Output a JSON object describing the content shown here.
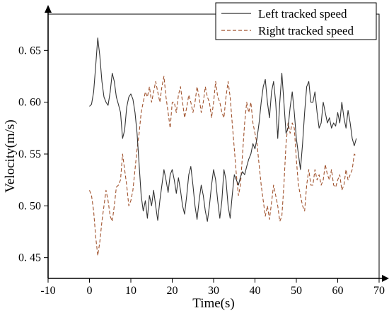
{
  "chart_data": {
    "type": "line",
    "xlabel": "Time(s)",
    "ylabel": "Velocity(m/s)",
    "xlim": [
      -10,
      70
    ],
    "ylim": [
      0.43,
      0.685
    ],
    "xticks": [
      -10,
      0,
      10,
      20,
      30,
      40,
      50,
      60,
      70
    ],
    "xtick_labels": [
      "-10",
      "0",
      "10",
      "20",
      "30",
      "40",
      "50",
      "60",
      "70"
    ],
    "yticks": [
      0.45,
      0.5,
      0.55,
      0.6,
      0.65
    ],
    "ytick_labels": [
      "0. 45",
      "0. 50",
      "0. 55",
      "0. 60",
      "0. 65"
    ],
    "grid": false,
    "legend_position": "top-right",
    "series": [
      {
        "name": "Left tracked speed",
        "color": "#333333",
        "style": "solid",
        "points": [
          [
            0,
            0.596
          ],
          [
            0.5,
            0.598
          ],
          [
            1,
            0.61
          ],
          [
            1.5,
            0.635
          ],
          [
            2,
            0.662
          ],
          [
            2.5,
            0.645
          ],
          [
            3,
            0.62
          ],
          [
            3.5,
            0.605
          ],
          [
            4,
            0.6
          ],
          [
            4.5,
            0.597
          ],
          [
            5,
            0.61
          ],
          [
            5.5,
            0.628
          ],
          [
            6,
            0.62
          ],
          [
            6.5,
            0.605
          ],
          [
            7,
            0.598
          ],
          [
            7.5,
            0.59
          ],
          [
            8,
            0.565
          ],
          [
            8.5,
            0.573
          ],
          [
            9,
            0.595
          ],
          [
            9.5,
            0.605
          ],
          [
            10,
            0.608
          ],
          [
            10.5,
            0.603
          ],
          [
            11,
            0.59
          ],
          [
            11.5,
            0.57
          ],
          [
            12,
            0.54
          ],
          [
            12.5,
            0.51
          ],
          [
            13,
            0.495
          ],
          [
            13.5,
            0.505
          ],
          [
            14,
            0.488
          ],
          [
            14.5,
            0.51
          ],
          [
            15,
            0.5
          ],
          [
            15.5,
            0.515
          ],
          [
            16,
            0.5
          ],
          [
            16.5,
            0.486
          ],
          [
            17,
            0.505
          ],
          [
            17.5,
            0.52
          ],
          [
            18,
            0.535
          ],
          [
            18.5,
            0.525
          ],
          [
            19,
            0.513
          ],
          [
            19.5,
            0.53
          ],
          [
            20,
            0.535
          ],
          [
            20.5,
            0.525
          ],
          [
            21,
            0.512
          ],
          [
            21.5,
            0.527
          ],
          [
            22,
            0.515
          ],
          [
            22.5,
            0.5
          ],
          [
            23,
            0.492
          ],
          [
            23.5,
            0.51
          ],
          [
            24,
            0.53
          ],
          [
            24.5,
            0.538
          ],
          [
            25,
            0.52
          ],
          [
            25.5,
            0.5
          ],
          [
            26,
            0.487
          ],
          [
            26.5,
            0.505
          ],
          [
            27,
            0.52
          ],
          [
            27.5,
            0.51
          ],
          [
            28,
            0.495
          ],
          [
            28.5,
            0.485
          ],
          [
            29,
            0.5
          ],
          [
            29.5,
            0.52
          ],
          [
            30,
            0.535
          ],
          [
            30.5,
            0.525
          ],
          [
            31,
            0.505
          ],
          [
            31.5,
            0.488
          ],
          [
            32,
            0.505
          ],
          [
            32.5,
            0.535
          ],
          [
            33,
            0.525
          ],
          [
            33.5,
            0.5
          ],
          [
            34,
            0.488
          ],
          [
            34.5,
            0.51
          ],
          [
            35,
            0.53
          ],
          [
            35.5,
            0.525
          ],
          [
            36,
            0.52
          ],
          [
            36.5,
            0.528
          ],
          [
            37,
            0.533
          ],
          [
            37.5,
            0.53
          ],
          [
            38,
            0.538
          ],
          [
            38.5,
            0.545
          ],
          [
            39,
            0.55
          ],
          [
            39.5,
            0.56
          ],
          [
            40,
            0.555
          ],
          [
            40.5,
            0.565
          ],
          [
            41,
            0.58
          ],
          [
            41.5,
            0.6
          ],
          [
            42,
            0.615
          ],
          [
            42.5,
            0.622
          ],
          [
            43,
            0.6
          ],
          [
            43.5,
            0.585
          ],
          [
            44,
            0.61
          ],
          [
            44.5,
            0.62
          ],
          [
            45,
            0.6
          ],
          [
            45.5,
            0.565
          ],
          [
            46,
            0.6
          ],
          [
            46.5,
            0.628
          ],
          [
            47,
            0.6
          ],
          [
            47.5,
            0.57
          ],
          [
            48,
            0.575
          ],
          [
            48.5,
            0.595
          ],
          [
            49,
            0.61
          ],
          [
            49.5,
            0.59
          ],
          [
            50,
            0.565
          ],
          [
            50.5,
            0.55
          ],
          [
            51,
            0.535
          ],
          [
            51.5,
            0.56
          ],
          [
            52,
            0.59
          ],
          [
            52.5,
            0.615
          ],
          [
            53,
            0.62
          ],
          [
            53.5,
            0.6
          ],
          [
            54,
            0.6
          ],
          [
            54.5,
            0.61
          ],
          [
            55,
            0.59
          ],
          [
            55.5,
            0.575
          ],
          [
            56,
            0.58
          ],
          [
            56.5,
            0.6
          ],
          [
            57,
            0.59
          ],
          [
            57.5,
            0.58
          ],
          [
            58,
            0.585
          ],
          [
            58.5,
            0.575
          ],
          [
            59,
            0.58
          ],
          [
            59.5,
            0.577
          ],
          [
            60,
            0.59
          ],
          [
            60.5,
            0.58
          ],
          [
            61,
            0.6
          ],
          [
            61.5,
            0.585
          ],
          [
            62,
            0.575
          ],
          [
            62.5,
            0.592
          ],
          [
            63,
            0.58
          ],
          [
            63.5,
            0.565
          ],
          [
            64,
            0.558
          ],
          [
            64.5,
            0.565
          ]
        ]
      },
      {
        "name": "Right tracked speed",
        "color": "#a0522d",
        "style": "dashed",
        "points": [
          [
            0,
            0.515
          ],
          [
            0.5,
            0.51
          ],
          [
            1,
            0.495
          ],
          [
            1.5,
            0.47
          ],
          [
            2,
            0.452
          ],
          [
            2.5,
            0.465
          ],
          [
            3,
            0.485
          ],
          [
            3.5,
            0.5
          ],
          [
            4,
            0.515
          ],
          [
            4.5,
            0.505
          ],
          [
            5,
            0.49
          ],
          [
            5.5,
            0.485
          ],
          [
            6,
            0.5
          ],
          [
            6.5,
            0.518
          ],
          [
            7,
            0.52
          ],
          [
            7.5,
            0.525
          ],
          [
            8,
            0.55
          ],
          [
            8.5,
            0.535
          ],
          [
            9,
            0.52
          ],
          [
            9.5,
            0.5
          ],
          [
            10,
            0.505
          ],
          [
            10.5,
            0.515
          ],
          [
            11,
            0.535
          ],
          [
            11.5,
            0.555
          ],
          [
            12,
            0.57
          ],
          [
            12.5,
            0.59
          ],
          [
            13,
            0.6
          ],
          [
            13.5,
            0.61
          ],
          [
            14,
            0.605
          ],
          [
            14.5,
            0.615
          ],
          [
            15,
            0.6
          ],
          [
            15.5,
            0.61
          ],
          [
            16,
            0.62
          ],
          [
            16.5,
            0.61
          ],
          [
            17,
            0.6
          ],
          [
            17.5,
            0.615
          ],
          [
            18,
            0.625
          ],
          [
            18.5,
            0.605
          ],
          [
            19,
            0.59
          ],
          [
            19.5,
            0.575
          ],
          [
            20,
            0.6
          ],
          [
            20.5,
            0.6
          ],
          [
            21,
            0.59
          ],
          [
            21.5,
            0.607
          ],
          [
            22,
            0.615
          ],
          [
            22.5,
            0.6
          ],
          [
            23,
            0.585
          ],
          [
            23.5,
            0.595
          ],
          [
            24,
            0.607
          ],
          [
            24.5,
            0.6
          ],
          [
            25,
            0.59
          ],
          [
            25.5,
            0.6
          ],
          [
            26,
            0.615
          ],
          [
            26.5,
            0.605
          ],
          [
            27,
            0.59
          ],
          [
            27.5,
            0.6
          ],
          [
            28,
            0.615
          ],
          [
            28.5,
            0.605
          ],
          [
            29,
            0.6
          ],
          [
            29.5,
            0.585
          ],
          [
            30,
            0.6
          ],
          [
            30.5,
            0.62
          ],
          [
            31,
            0.605
          ],
          [
            31.5,
            0.6
          ],
          [
            32,
            0.59
          ],
          [
            32.5,
            0.585
          ],
          [
            33,
            0.605
          ],
          [
            33.5,
            0.62
          ],
          [
            34,
            0.605
          ],
          [
            34.5,
            0.58
          ],
          [
            35,
            0.555
          ],
          [
            35.5,
            0.53
          ],
          [
            36,
            0.51
          ],
          [
            36.5,
            0.52
          ],
          [
            37,
            0.55
          ],
          [
            37.5,
            0.58
          ],
          [
            38,
            0.6
          ],
          [
            38.5,
            0.59
          ],
          [
            39,
            0.6
          ],
          [
            39.5,
            0.58
          ],
          [
            40,
            0.57
          ],
          [
            40.5,
            0.56
          ],
          [
            41,
            0.54
          ],
          [
            41.5,
            0.52
          ],
          [
            42,
            0.505
          ],
          [
            42.5,
            0.49
          ],
          [
            43,
            0.5
          ],
          [
            43.5,
            0.487
          ],
          [
            44,
            0.503
          ],
          [
            44.5,
            0.52
          ],
          [
            45,
            0.51
          ],
          [
            45.5,
            0.5
          ],
          [
            46,
            0.485
          ],
          [
            46.5,
            0.49
          ],
          [
            47,
            0.52
          ],
          [
            47.5,
            0.56
          ],
          [
            48,
            0.58
          ],
          [
            48.5,
            0.57
          ],
          [
            49,
            0.58
          ],
          [
            49.5,
            0.575
          ],
          [
            50,
            0.545
          ],
          [
            50.5,
            0.52
          ],
          [
            51,
            0.51
          ],
          [
            51.5,
            0.5
          ],
          [
            52,
            0.495
          ],
          [
            52.5,
            0.52
          ],
          [
            53,
            0.535
          ],
          [
            53.5,
            0.52
          ],
          [
            54,
            0.52
          ],
          [
            54.5,
            0.535
          ],
          [
            55,
            0.525
          ],
          [
            55.5,
            0.53
          ],
          [
            56,
            0.52
          ],
          [
            56.5,
            0.525
          ],
          [
            57,
            0.54
          ],
          [
            57.5,
            0.53
          ],
          [
            58,
            0.525
          ],
          [
            58.5,
            0.535
          ],
          [
            59,
            0.52
          ],
          [
            59.5,
            0.518
          ],
          [
            60,
            0.525
          ],
          [
            60.5,
            0.53
          ],
          [
            61,
            0.515
          ],
          [
            61.5,
            0.52
          ],
          [
            62,
            0.535
          ],
          [
            62.5,
            0.525
          ],
          [
            63,
            0.53
          ],
          [
            63.5,
            0.535
          ],
          [
            64,
            0.55
          ],
          [
            64.5,
            0.548
          ]
        ]
      }
    ]
  }
}
